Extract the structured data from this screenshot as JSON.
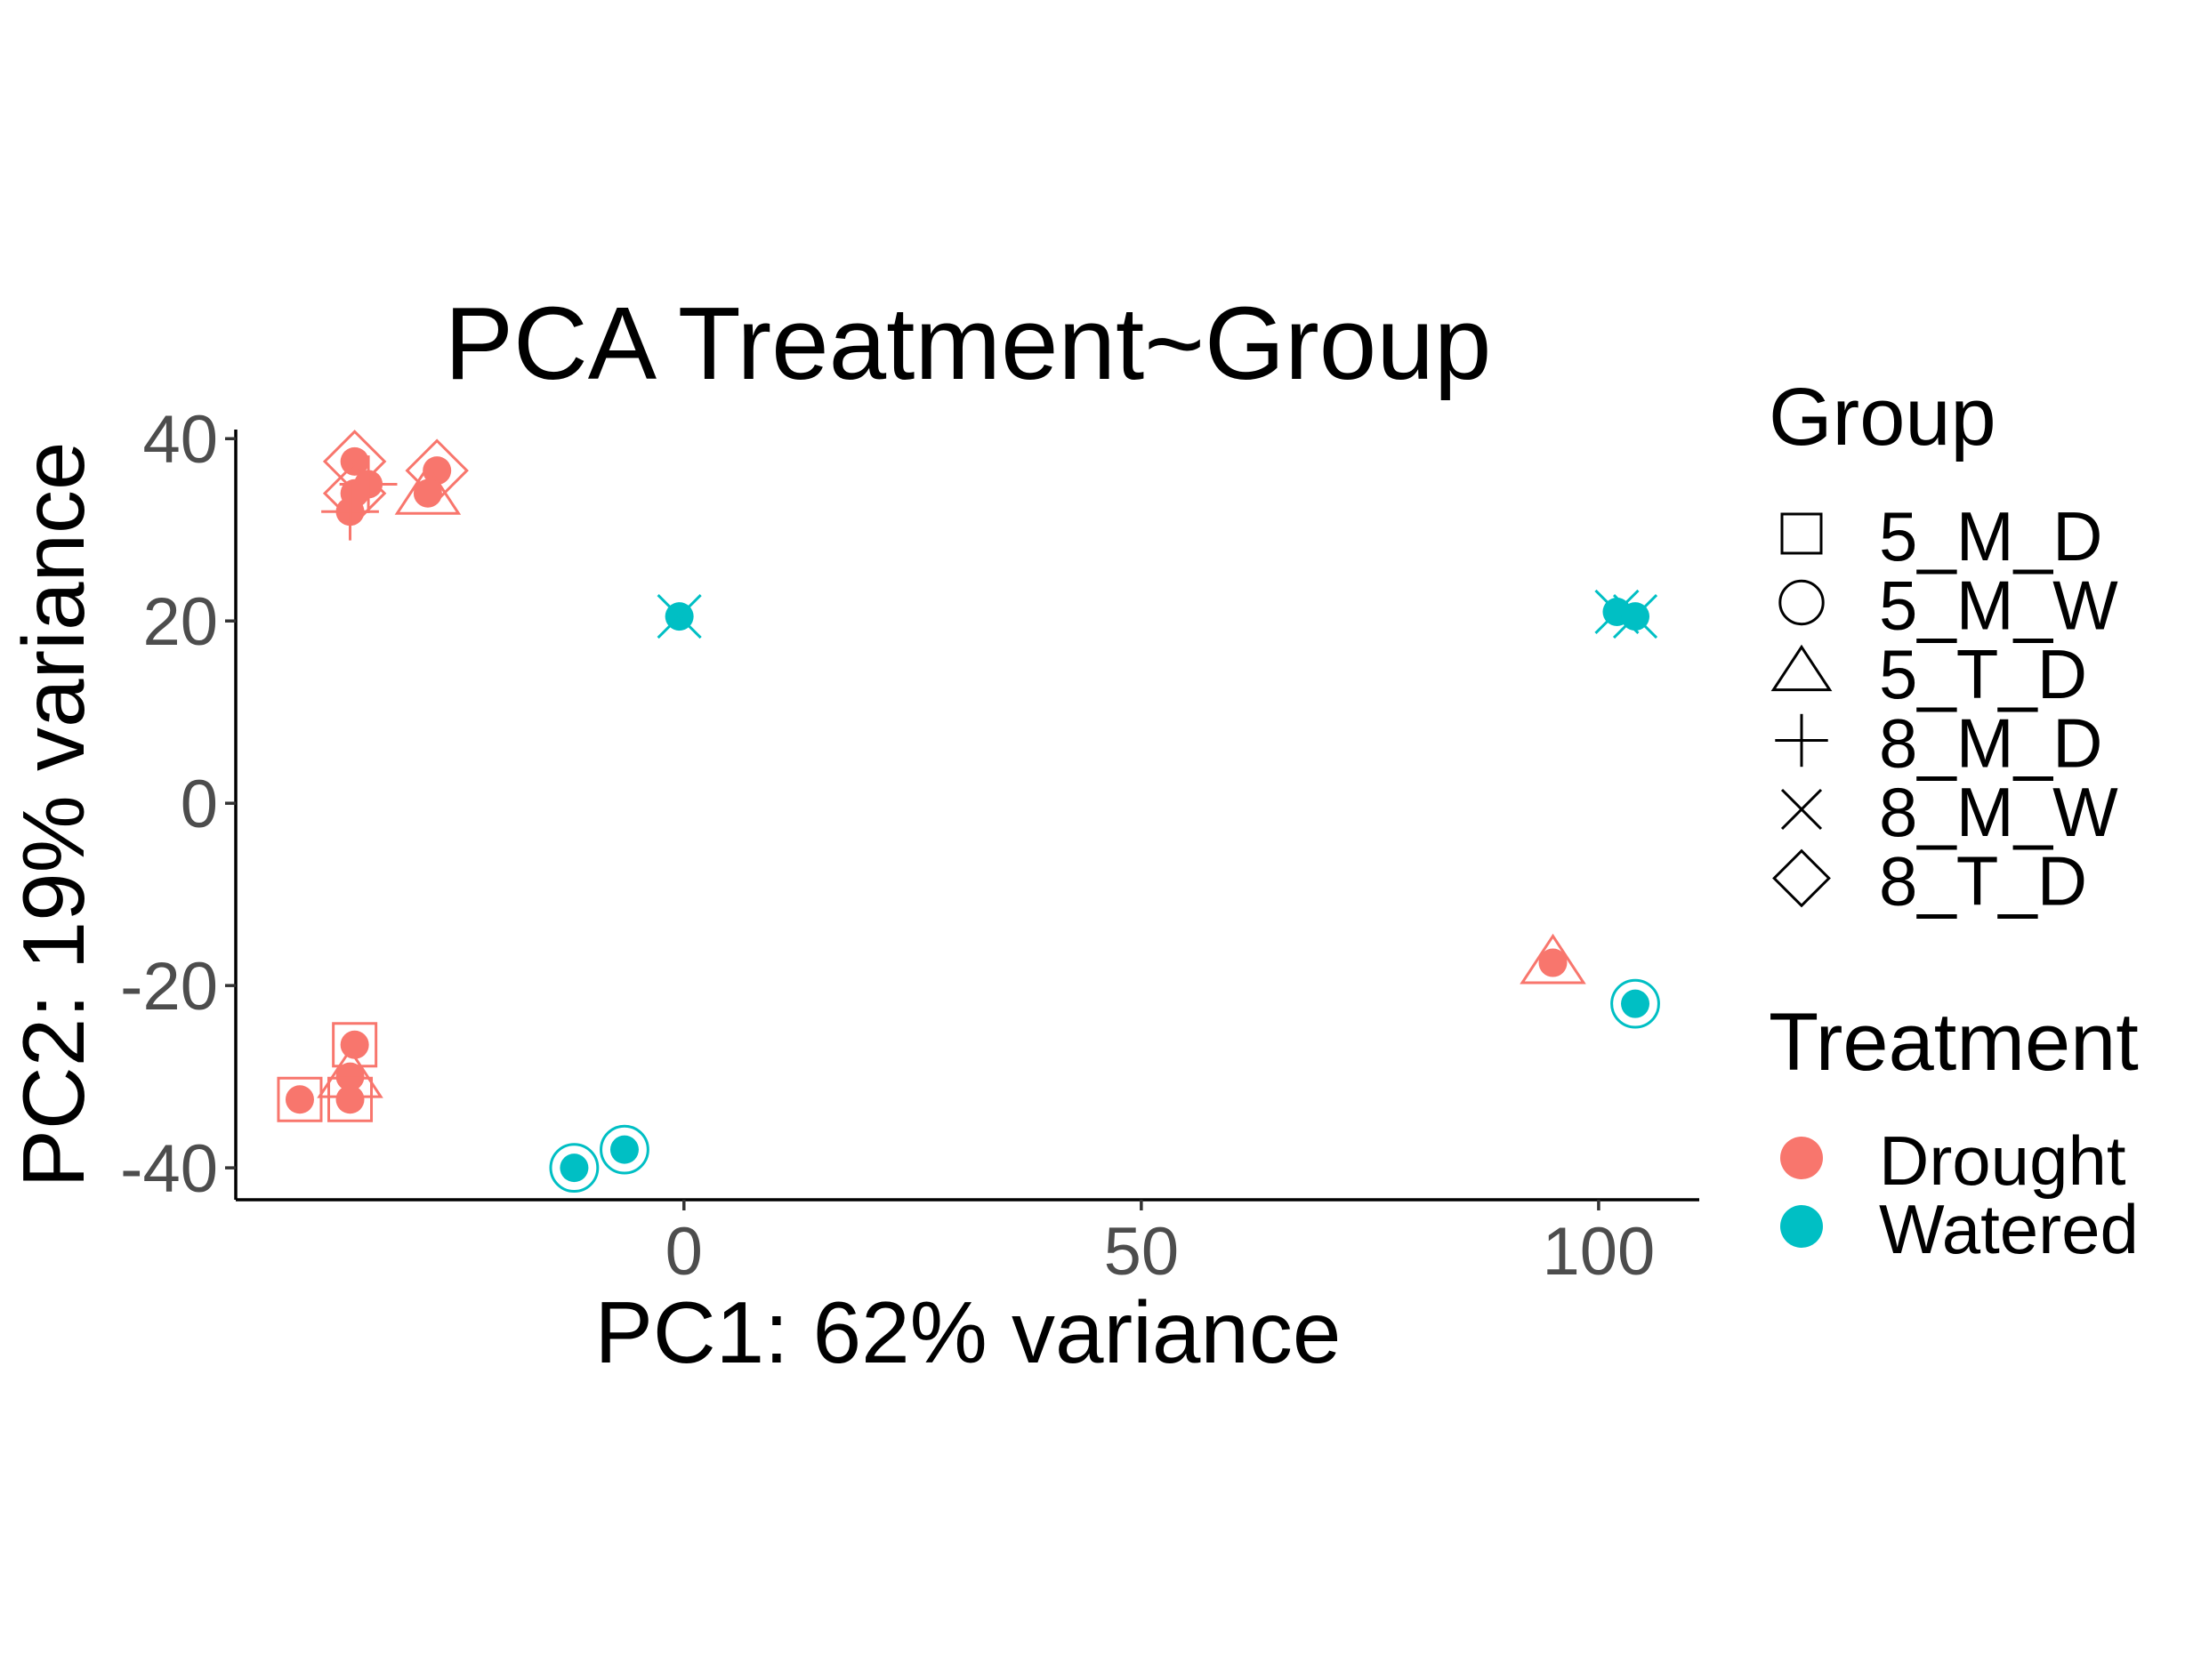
{
  "chart_data": {
    "type": "scatter",
    "title": "PCA Treatment~Group",
    "xlabel": "PC1: 62% variance",
    "ylabel": "PC2: 19% variance",
    "xlim": [
      -49,
      111
    ],
    "ylim": [
      -43.5,
      41
    ],
    "x_ticks": [
      0,
      50,
      100
    ],
    "y_ticks": [
      40,
      20,
      0,
      -20,
      -40
    ],
    "grid": false,
    "legend_position": "right",
    "group_legend": {
      "title": "Group",
      "entries": [
        {
          "label": "5_M_D",
          "shape": "square"
        },
        {
          "label": "5_M_W",
          "shape": "circle"
        },
        {
          "label": "5_T_D",
          "shape": "triangle"
        },
        {
          "label": "8_M_D",
          "shape": "plus"
        },
        {
          "label": "8_M_W",
          "shape": "cross"
        },
        {
          "label": "8_T_D",
          "shape": "diamond"
        }
      ]
    },
    "treatment_legend": {
      "title": "Treatment",
      "entries": [
        {
          "label": "Drought",
          "color": "#F8766D"
        },
        {
          "label": "Watered",
          "color": "#00BFC4"
        }
      ]
    },
    "points": [
      {
        "x": -36,
        "y": 37.5,
        "treatment": "Drought",
        "group": "8_T_D"
      },
      {
        "x": -36,
        "y": 34,
        "treatment": "Drought",
        "group": "8_T_D"
      },
      {
        "x": -34.5,
        "y": 35,
        "treatment": "Drought",
        "group": "8_M_D"
      },
      {
        "x": -36.5,
        "y": 32,
        "treatment": "Drought",
        "group": "8_M_D"
      },
      {
        "x": -27,
        "y": 36.5,
        "treatment": "Drought",
        "group": "8_T_D"
      },
      {
        "x": -28,
        "y": 34,
        "treatment": "Drought",
        "group": "5_T_D"
      },
      {
        "x": -0.5,
        "y": 20.5,
        "treatment": "Watered",
        "group": "8_M_W"
      },
      {
        "x": 102,
        "y": 21,
        "treatment": "Watered",
        "group": "8_M_W"
      },
      {
        "x": 104,
        "y": 20.5,
        "treatment": "Watered",
        "group": "8_M_W"
      },
      {
        "x": 95,
        "y": -17.5,
        "treatment": "Drought",
        "group": "5_T_D"
      },
      {
        "x": 104,
        "y": -22,
        "treatment": "Watered",
        "group": "5_M_W"
      },
      {
        "x": -36,
        "y": -26.5,
        "treatment": "Drought",
        "group": "5_M_D"
      },
      {
        "x": -36.5,
        "y": -30,
        "treatment": "Drought",
        "group": "5_T_D"
      },
      {
        "x": -36.5,
        "y": -32.5,
        "treatment": "Drought",
        "group": "5_M_D"
      },
      {
        "x": -42,
        "y": -32.5,
        "treatment": "Drought",
        "group": "5_M_D"
      },
      {
        "x": -12,
        "y": -40,
        "treatment": "Watered",
        "group": "5_M_W"
      },
      {
        "x": -6.5,
        "y": -38,
        "treatment": "Watered",
        "group": "5_M_W"
      }
    ]
  }
}
